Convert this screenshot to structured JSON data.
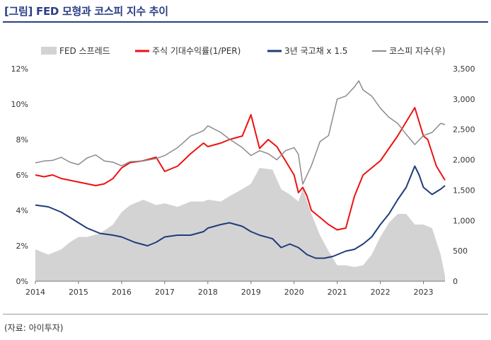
{
  "title": "[그림] FED 모형과 코스피 지수 추이",
  "source": "(자료: 아이투자)",
  "chart_data": {
    "type": "line",
    "legend_placement": "top",
    "grid": false,
    "x_ticks": [
      "2014",
      "2015",
      "2016",
      "2017",
      "2018",
      "2019",
      "2020",
      "2021",
      "2022",
      "2023"
    ],
    "x_range": [
      2014.0,
      2023.5
    ],
    "y_left": {
      "ticks": [
        "0%",
        "2%",
        "4%",
        "6%",
        "8%",
        "10%",
        "12%"
      ],
      "range": [
        0,
        12
      ]
    },
    "y_right": {
      "ticks": [
        "0",
        "500",
        "1,000",
        "1,500",
        "2,000",
        "2,500",
        "3,000",
        "3,500"
      ],
      "range": [
        0,
        3500
      ]
    },
    "series": [
      {
        "name": "FED 스프레드",
        "kind": "area",
        "axis": "left",
        "color": "#d3d3d3",
        "x": [
          2014.0,
          2014.3,
          2014.6,
          2014.8,
          2015.0,
          2015.2,
          2015.5,
          2015.8,
          2016.0,
          2016.2,
          2016.5,
          2016.8,
          2017.0,
          2017.3,
          2017.6,
          2017.9,
          2018.0,
          2018.3,
          2018.5,
          2018.8,
          2019.0,
          2019.2,
          2019.5,
          2019.7,
          2019.9,
          2020.1,
          2020.2,
          2020.4,
          2020.6,
          2020.8,
          2021.0,
          2021.2,
          2021.4,
          2021.6,
          2021.8,
          2022.0,
          2022.2,
          2022.4,
          2022.6,
          2022.8,
          2023.0,
          2023.2,
          2023.4,
          2023.5
        ],
        "y": [
          1.8,
          1.5,
          1.8,
          2.2,
          2.5,
          2.5,
          2.7,
          3.2,
          3.9,
          4.3,
          4.6,
          4.3,
          4.4,
          4.2,
          4.5,
          4.5,
          4.6,
          4.5,
          4.8,
          5.2,
          5.5,
          6.4,
          6.3,
          5.2,
          4.9,
          4.5,
          5.2,
          3.8,
          2.6,
          1.7,
          0.9,
          0.9,
          0.8,
          0.9,
          1.5,
          2.5,
          3.3,
          3.8,
          3.8,
          3.2,
          3.2,
          3.0,
          1.5,
          0.3
        ]
      },
      {
        "name": "주식 기대수익률(1/PER)",
        "kind": "line",
        "axis": "left",
        "color": "#ee1111",
        "x": [
          2014.0,
          2014.2,
          2014.4,
          2014.6,
          2014.8,
          2015.0,
          2015.2,
          2015.4,
          2015.6,
          2015.8,
          2016.0,
          2016.2,
          2016.5,
          2016.8,
          2017.0,
          2017.3,
          2017.6,
          2017.9,
          2018.0,
          2018.3,
          2018.5,
          2018.8,
          2019.0,
          2019.2,
          2019.4,
          2019.6,
          2019.8,
          2020.0,
          2020.1,
          2020.2,
          2020.3,
          2020.4,
          2020.6,
          2020.8,
          2021.0,
          2021.2,
          2021.4,
          2021.6,
          2021.8,
          2022.0,
          2022.2,
          2022.4,
          2022.6,
          2022.8,
          2023.0,
          2023.1,
          2023.3,
          2023.5
        ],
        "y": [
          6.0,
          5.9,
          6.0,
          5.8,
          5.7,
          5.6,
          5.5,
          5.4,
          5.5,
          5.8,
          6.4,
          6.7,
          6.8,
          7.0,
          6.2,
          6.5,
          7.2,
          7.8,
          7.6,
          7.8,
          8.0,
          8.2,
          9.4,
          7.5,
          8.0,
          7.6,
          6.8,
          6.0,
          5.0,
          5.3,
          4.8,
          4.0,
          3.6,
          3.2,
          2.9,
          3.0,
          4.8,
          6.0,
          6.4,
          6.8,
          7.5,
          8.2,
          9.0,
          9.8,
          8.2,
          8.0,
          6.5,
          5.7
        ]
      },
      {
        "name": "3년 국고채 x 1.5",
        "kind": "line",
        "axis": "left",
        "color": "#1f3d7a",
        "x": [
          2014.0,
          2014.3,
          2014.6,
          2014.8,
          2015.0,
          2015.2,
          2015.5,
          2015.8,
          2016.0,
          2016.3,
          2016.6,
          2016.8,
          2017.0,
          2017.3,
          2017.6,
          2017.9,
          2018.0,
          2018.3,
          2018.5,
          2018.8,
          2019.0,
          2019.2,
          2019.5,
          2019.7,
          2019.9,
          2020.1,
          2020.3,
          2020.5,
          2020.7,
          2020.9,
          2021.0,
          2021.2,
          2021.4,
          2021.6,
          2021.8,
          2022.0,
          2022.2,
          2022.4,
          2022.6,
          2022.8,
          2022.9,
          2023.0,
          2023.2,
          2023.4,
          2023.5
        ],
        "y": [
          4.3,
          4.2,
          3.9,
          3.6,
          3.3,
          3.0,
          2.7,
          2.6,
          2.5,
          2.2,
          2.0,
          2.2,
          2.5,
          2.6,
          2.6,
          2.8,
          3.0,
          3.2,
          3.3,
          3.1,
          2.8,
          2.6,
          2.4,
          1.9,
          2.1,
          1.9,
          1.5,
          1.3,
          1.3,
          1.4,
          1.5,
          1.7,
          1.8,
          2.1,
          2.5,
          3.2,
          3.8,
          4.6,
          5.3,
          6.5,
          6.0,
          5.3,
          4.9,
          5.2,
          5.4
        ]
      },
      {
        "name": "코스피 지수(우)",
        "kind": "line",
        "axis": "right",
        "color": "#8c8c8c",
        "x": [
          2014.0,
          2014.2,
          2014.4,
          2014.6,
          2014.8,
          2015.0,
          2015.2,
          2015.4,
          2015.6,
          2015.8,
          2016.0,
          2016.2,
          2016.5,
          2016.8,
          2017.0,
          2017.3,
          2017.6,
          2017.9,
          2018.0,
          2018.3,
          2018.5,
          2018.8,
          2019.0,
          2019.2,
          2019.4,
          2019.6,
          2019.8,
          2020.0,
          2020.1,
          2020.2,
          2020.4,
          2020.6,
          2020.8,
          2021.0,
          2021.2,
          2021.4,
          2021.5,
          2021.6,
          2021.8,
          2022.0,
          2022.2,
          2022.4,
          2022.6,
          2022.8,
          2023.0,
          2023.2,
          2023.4,
          2023.5
        ],
        "y": [
          1950,
          1980,
          1990,
          2040,
          1960,
          1920,
          2030,
          2080,
          1980,
          1960,
          1900,
          1970,
          1980,
          2020,
          2070,
          2200,
          2390,
          2480,
          2560,
          2450,
          2340,
          2200,
          2070,
          2150,
          2100,
          2000,
          2150,
          2200,
          2090,
          1600,
          1900,
          2300,
          2400,
          3000,
          3050,
          3200,
          3300,
          3150,
          3050,
          2850,
          2700,
          2600,
          2420,
          2250,
          2400,
          2450,
          2600,
          2580
        ]
      }
    ]
  }
}
